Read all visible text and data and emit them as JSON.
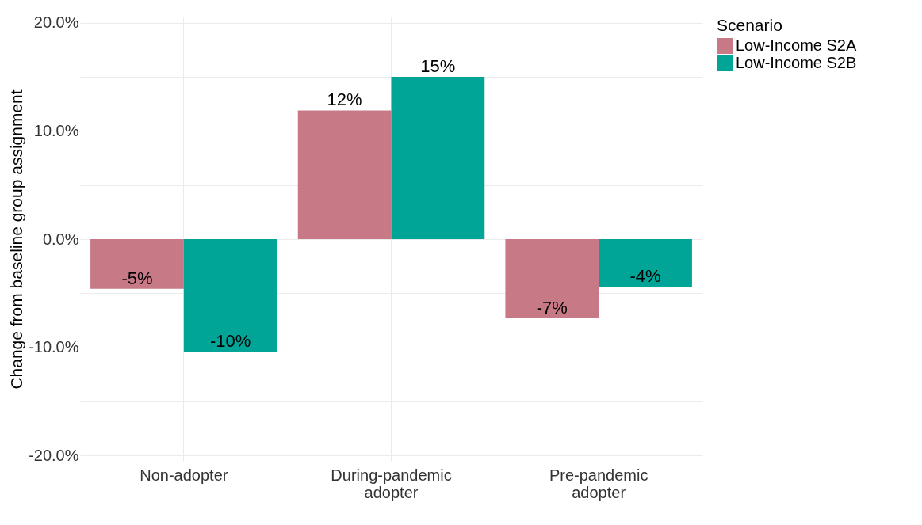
{
  "chart_data": {
    "type": "bar",
    "ylabel": "Change from baseline group assignment",
    "legend_title": "Scenario",
    "categories": [
      "Non-adopter",
      "During-pandemic adopter",
      "Pre-pandemic adopter"
    ],
    "series": [
      {
        "name": "Low-Income S2A",
        "color": "#c77986",
        "values": [
          -4.6,
          11.9,
          -7.3
        ],
        "value_labels": [
          "-5%",
          "12%",
          "-7%"
        ]
      },
      {
        "name": "Low-Income S2B",
        "color": "#00a597",
        "values": [
          -10.4,
          15.0,
          -4.4
        ],
        "value_labels": [
          "-10%",
          "15%",
          "-4%"
        ]
      }
    ],
    "ylim": [
      -20.5,
      20.5
    ],
    "yticks": [
      {
        "value": -20,
        "label": "-20.0%"
      },
      {
        "value": -15,
        "label": null
      },
      {
        "value": -10,
        "label": "-10.0%"
      },
      {
        "value": -5,
        "label": null
      },
      {
        "value": 0,
        "label": "0.0%"
      },
      {
        "value": 5,
        "label": null
      },
      {
        "value": 10,
        "label": "10.0%"
      },
      {
        "value": 15,
        "label": null
      },
      {
        "value": 20,
        "label": "20.0%"
      }
    ],
    "grid": true,
    "legend": "right"
  }
}
